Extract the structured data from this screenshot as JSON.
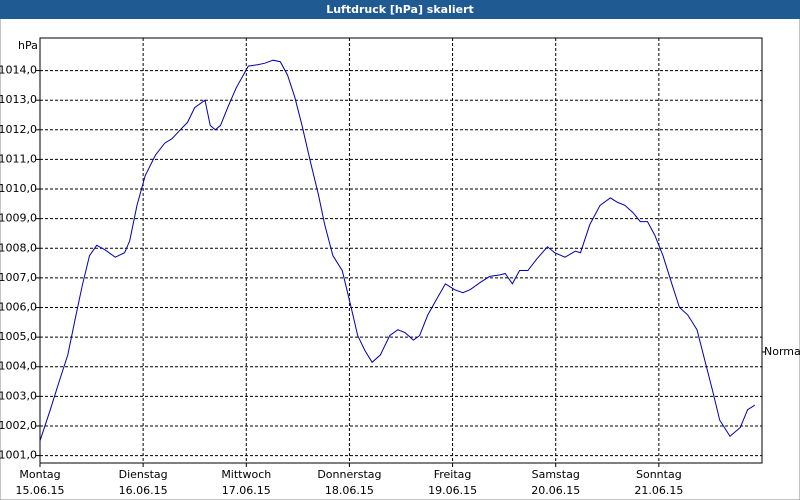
{
  "chart_data": {
    "type": "line",
    "title": "Luftdruck [hPa] skaliert",
    "y_unit": "hPa",
    "xlim": [
      0,
      7
    ],
    "xticks": [
      {
        "value": 0,
        "label": "Montag",
        "date": "15.06.15"
      },
      {
        "value": 1,
        "label": "Dienstag",
        "date": "16.06.15"
      },
      {
        "value": 2,
        "label": "Mittwoch",
        "date": "17.06.15"
      },
      {
        "value": 3,
        "label": "Donnerstag",
        "date": "18.06.15"
      },
      {
        "value": 4,
        "label": "Freitag",
        "date": "19.06.15"
      },
      {
        "value": 5,
        "label": "Samstag",
        "date": "20.06.15"
      },
      {
        "value": 6,
        "label": "Sonntag",
        "date": "21.06.15"
      }
    ],
    "ylim": [
      1000.75,
      1015.1
    ],
    "yticks": [
      {
        "value": 1001,
        "label": "1001,0"
      },
      {
        "value": 1002,
        "label": "1002,0"
      },
      {
        "value": 1003,
        "label": "1003,0"
      },
      {
        "value": 1004,
        "label": "1004,0"
      },
      {
        "value": 1005,
        "label": "1005,0"
      },
      {
        "value": 1006,
        "label": "1006,0"
      },
      {
        "value": 1007,
        "label": "1007,0"
      },
      {
        "value": 1008,
        "label": "1008,0"
      },
      {
        "value": 1009,
        "label": "1009,0"
      },
      {
        "value": 1010,
        "label": "1010,0"
      },
      {
        "value": 1011,
        "label": "1011,0"
      },
      {
        "value": 1012,
        "label": "1012,0"
      },
      {
        "value": 1013,
        "label": "1013,0"
      },
      {
        "value": 1014,
        "label": "1014,0"
      }
    ],
    "grid": true,
    "normal": {
      "value": 1004.5,
      "label": "Normal"
    },
    "series": [
      {
        "name": "Luftdruck",
        "color": "#0000b0",
        "x": [
          0,
          0.1,
          0.19,
          0.27,
          0.34,
          0.41,
          0.48,
          0.55,
          0.63,
          0.73,
          0.82,
          0.87,
          0.94,
          1.02,
          1.12,
          1.21,
          1.28,
          1.36,
          1.43,
          1.5,
          1.6,
          1.65,
          1.7,
          1.75,
          1.82,
          1.9,
          2.02,
          2.11,
          2.18,
          2.26,
          2.33,
          2.4,
          2.47,
          2.54,
          2.62,
          2.7,
          2.76,
          2.84,
          2.93,
          3.01,
          3.08,
          3.15,
          3.22,
          3.3,
          3.39,
          3.47,
          3.54,
          3.62,
          3.68,
          3.76,
          3.84,
          3.93,
          4.02,
          4.1,
          4.17,
          4.27,
          4.36,
          4.46,
          4.51,
          4.58,
          4.65,
          4.73,
          4.82,
          4.92,
          4.99,
          5.09,
          5.19,
          5.24,
          5.33,
          5.43,
          5.53,
          5.6,
          5.67,
          5.75,
          5.82,
          5.89,
          5.96,
          6.04,
          6.13,
          6.2,
          6.28,
          6.37,
          6.45,
          6.52,
          6.59,
          6.69,
          6.79,
          6.86,
          6.93
        ],
        "values": [
          1001.5,
          1002.55,
          1003.55,
          1004.4,
          1005.6,
          1006.75,
          1007.75,
          1008.1,
          1007.95,
          1007.7,
          1007.85,
          1008.25,
          1009.45,
          1010.45,
          1011.15,
          1011.55,
          1011.7,
          1012.0,
          1012.25,
          1012.75,
          1013.0,
          1012.15,
          1012.0,
          1012.15,
          1012.75,
          1013.4,
          1014.15,
          1014.2,
          1014.25,
          1014.35,
          1014.3,
          1013.85,
          1013.1,
          1012.15,
          1010.95,
          1009.8,
          1008.8,
          1007.75,
          1007.25,
          1006.1,
          1005.05,
          1004.55,
          1004.15,
          1004.4,
          1005.05,
          1005.25,
          1005.15,
          1004.9,
          1005.05,
          1005.75,
          1006.25,
          1006.8,
          1006.6,
          1006.5,
          1006.6,
          1006.85,
          1007.05,
          1007.1,
          1007.15,
          1006.8,
          1007.25,
          1007.25,
          1007.65,
          1008.05,
          1007.85,
          1007.7,
          1007.9,
          1007.85,
          1008.8,
          1009.45,
          1009.7,
          1009.55,
          1009.45,
          1009.2,
          1008.9,
          1008.9,
          1008.45,
          1007.75,
          1006.75,
          1006.0,
          1005.75,
          1005.25,
          1004.15,
          1003.2,
          1002.2,
          1001.65,
          1001.95,
          1002.55,
          1002.7
        ]
      }
    ]
  }
}
